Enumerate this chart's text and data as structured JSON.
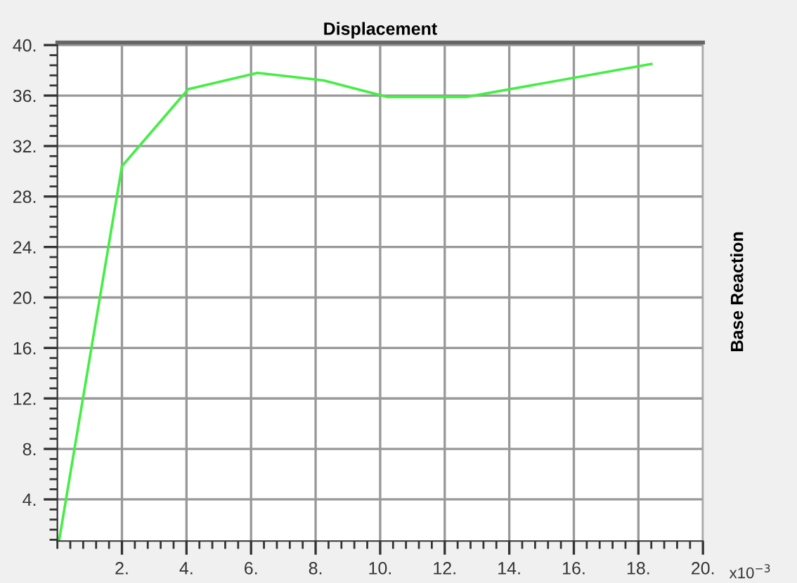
{
  "chart_data": {
    "type": "line",
    "title": "Displacement",
    "ylabel": "Base Reaction",
    "annotations": [
      "x10$^{−3}$"
    ],
    "x": [
      0.05,
      2.0,
      4.05,
      6.2,
      8.25,
      10.2,
      12.7,
      18.4
    ],
    "series": [
      {
        "color": "#44ee44",
        "values": [
          0.7,
          30.4,
          36.5,
          37.8,
          37.2,
          35.9,
          35.9,
          38.5
        ]
      }
    ],
    "xlim": [
      0,
      20
    ],
    "ylim": [
      0.7,
      40.2
    ],
    "xticks": [
      {
        "value": 2,
        "label": "2."
      },
      {
        "value": 4,
        "label": "4."
      },
      {
        "value": 6,
        "label": "6."
      },
      {
        "value": 8,
        "label": "8."
      },
      {
        "value": 10,
        "label": "10."
      },
      {
        "value": 12,
        "label": "12."
      },
      {
        "value": 14,
        "label": "14."
      },
      {
        "value": 16,
        "label": "16."
      },
      {
        "value": 18,
        "label": "18."
      },
      {
        "value": 20,
        "label": "20."
      }
    ],
    "yticks": [
      {
        "value": 4,
        "label": "4."
      },
      {
        "value": 8,
        "label": "8."
      },
      {
        "value": 12,
        "label": "12."
      },
      {
        "value": 16,
        "label": "16."
      },
      {
        "value": 20,
        "label": "20."
      },
      {
        "value": 24,
        "label": "24."
      },
      {
        "value": 28,
        "label": "28."
      },
      {
        "value": 32,
        "label": "32."
      },
      {
        "value": 36,
        "label": "36."
      },
      {
        "value": 40,
        "label": "40."
      }
    ],
    "grid": true,
    "marker": "none",
    "line_style": "solid"
  }
}
